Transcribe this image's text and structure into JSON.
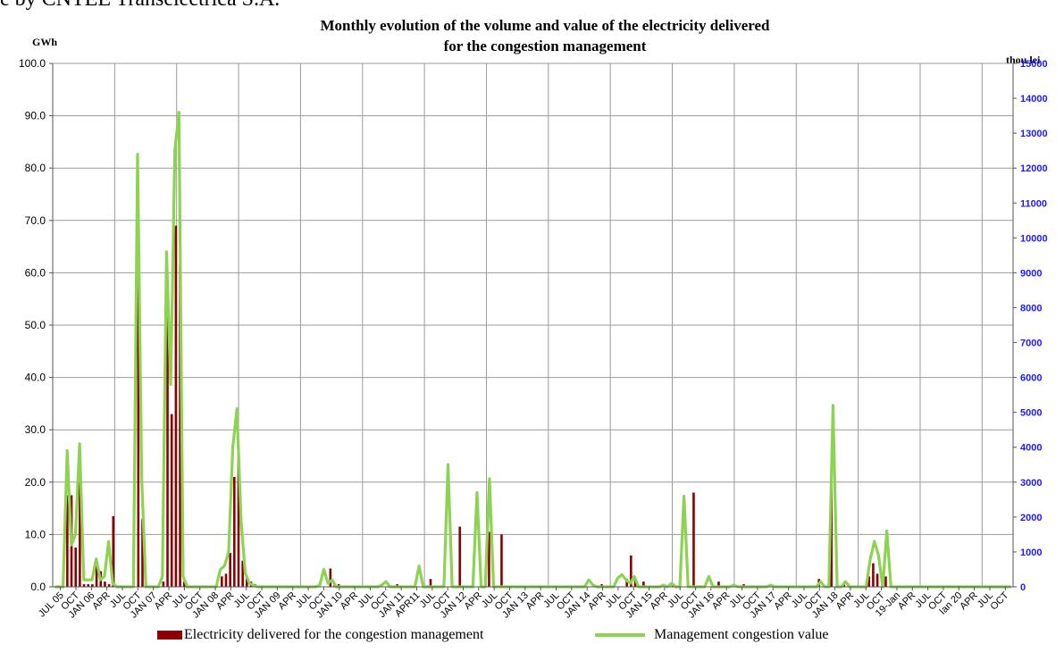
{
  "caption": "e by CNTEE Transelectrica S.A.",
  "chart_data": {
    "type": "bar",
    "title": "Monthly evolution of the volume and value of the electricity delivered",
    "subtitle": "for the congestion management",
    "ylabel_left": "GWh",
    "ylabel_right": "thou lei",
    "ylim_left": [
      0,
      100
    ],
    "ylim_right": [
      0,
      15000
    ],
    "yticks_left": [
      "0.0",
      "10.0",
      "20.0",
      "30.0",
      "40.0",
      "50.0",
      "60.0",
      "70.0",
      "80.0",
      "90.0",
      "100.0"
    ],
    "yticks_right": [
      "0",
      "1000",
      "2000",
      "3000",
      "4000",
      "5000",
      "6000",
      "7000",
      "8000",
      "9000",
      "10000",
      "11000",
      "12000",
      "13000",
      "14000",
      "15000"
    ],
    "x_labels": [
      "JUL 05",
      "OCT",
      "JAN 06",
      "APR",
      "JUL",
      "OCT",
      "JAN 07",
      "APR",
      "JUL",
      "OCT",
      "JAN 08",
      "APR",
      "JUL",
      "OCT",
      "JAN 09",
      "APR",
      "JUL",
      "OCT",
      "JAN 10",
      "APR",
      "JUL",
      "OCT",
      "JAN 11",
      "APR11",
      "JUL",
      "OCT",
      "JAN 12",
      "APR",
      "JUL",
      "OCT",
      "JAN 13",
      "APR",
      "JUL",
      "OCT",
      "JAN 14",
      "APR",
      "JUL",
      "OCT",
      "JAN 15",
      "APR",
      "JUL",
      "OCT",
      "JAN 16",
      "APR",
      "JUL",
      "OCT",
      "JAN 17",
      "APR",
      "JUL",
      "OCT",
      "JAN 18",
      "APR",
      "JUL",
      "OCT",
      "19-Jan",
      "APR",
      "JUL",
      "OCT",
      "Ian 20",
      "APR",
      "JUL",
      "OCT"
    ],
    "grid": true,
    "legend_position": "bottom",
    "series": [
      {
        "name": "Electricity delivered for the congestion management",
        "type": "bar",
        "axis": "left",
        "color": "#8b0000",
        "values": [
          0,
          0,
          0,
          17.5,
          17.5,
          7.5,
          20,
          0.5,
          0.5,
          0.5,
          5,
          3,
          1,
          0.5,
          13.5,
          0,
          0,
          0,
          0,
          0,
          59,
          13,
          0,
          0,
          0,
          0,
          1,
          52,
          33,
          69,
          61.5,
          1,
          0,
          0,
          0,
          0,
          0,
          0,
          0,
          0,
          2,
          2.5,
          6.5,
          21,
          27,
          5,
          2,
          1,
          0.5,
          0,
          0,
          0,
          0,
          0,
          0,
          0,
          0,
          0,
          0,
          0,
          0,
          0,
          0,
          0,
          0,
          0,
          3.5,
          0.5,
          0.5,
          0,
          0,
          0,
          0,
          0,
          0,
          0,
          0,
          0,
          0,
          0,
          0,
          0,
          0.5,
          0,
          0,
          0,
          0,
          0,
          0,
          0,
          1.5,
          0,
          0,
          0,
          0,
          0,
          0,
          11.5,
          0,
          0,
          0,
          0,
          0,
          0,
          10.5,
          0,
          0,
          10,
          0,
          0,
          0,
          0,
          0,
          0,
          0,
          0,
          0,
          0,
          0,
          0,
          0,
          0,
          0,
          0,
          0,
          0,
          0,
          0,
          0,
          0,
          0,
          0.5,
          0,
          0,
          0,
          0,
          0,
          1.5,
          6,
          1.5,
          0,
          1,
          0,
          0,
          0,
          0,
          0,
          0,
          0.5,
          0,
          0,
          0,
          0,
          18,
          0,
          0,
          0,
          0,
          0,
          1,
          0,
          0,
          0,
          0,
          0,
          0.5,
          0,
          0,
          0,
          0,
          0,
          0,
          0,
          0,
          0,
          0,
          0,
          0,
          0,
          0,
          0,
          0,
          0,
          1.5,
          0,
          0,
          20,
          0,
          0,
          0.5,
          0,
          0,
          0,
          0,
          0,
          2,
          4.5,
          2.5,
          0,
          2,
          0,
          0,
          0,
          0,
          0,
          0,
          0,
          0,
          0,
          0,
          0,
          0,
          0,
          0,
          0,
          0,
          0,
          0,
          0,
          0,
          0,
          0,
          0,
          0,
          0,
          0,
          0,
          0,
          0,
          0
        ]
      },
      {
        "name": "Management congestion value",
        "type": "line",
        "axis": "right",
        "color": "#8cd352",
        "values": [
          0,
          0,
          0,
          3900,
          1200,
          1500,
          4100,
          200,
          200,
          200,
          800,
          200,
          300,
          1300,
          100,
          0,
          0,
          0,
          0,
          0,
          12400,
          3100,
          0,
          0,
          0,
          0,
          300,
          9600,
          5800,
          12500,
          13600,
          300,
          0,
          0,
          0,
          0,
          0,
          0,
          0,
          0,
          500,
          600,
          1000,
          4000,
          5100,
          1900,
          400,
          100,
          50,
          0,
          0,
          0,
          0,
          0,
          0,
          0,
          0,
          0,
          0,
          0,
          0,
          0,
          0,
          0,
          50,
          500,
          100,
          200,
          0,
          0,
          0,
          0,
          0,
          0,
          0,
          0,
          0,
          0,
          0,
          50,
          150,
          0,
          0,
          0,
          0,
          0,
          0,
          0,
          600,
          0,
          0,
          0,
          0,
          0,
          0,
          3500,
          0,
          0,
          0,
          0,
          0,
          0,
          2700,
          0,
          0,
          3100,
          0,
          0,
          0,
          0,
          0,
          0,
          0,
          0,
          0,
          0,
          0,
          0,
          0,
          0,
          0,
          0,
          0,
          0,
          0,
          0,
          0,
          0,
          0,
          200,
          50,
          0,
          0,
          0,
          0,
          0,
          250,
          350,
          200,
          100,
          300,
          0,
          0,
          0,
          0,
          0,
          0,
          50,
          0,
          100,
          0,
          0,
          2600,
          0,
          0,
          0,
          0,
          0,
          300,
          0,
          0,
          0,
          0,
          0,
          50,
          0,
          0,
          0,
          0,
          0,
          0,
          0,
          0,
          50,
          0,
          0,
          0,
          0,
          0,
          0,
          0,
          0,
          0,
          0,
          0,
          150,
          0,
          0,
          5200,
          0,
          0,
          150,
          0,
          0,
          0,
          0,
          0,
          800,
          1300,
          900,
          0,
          1600,
          0,
          0,
          0,
          0,
          0,
          0,
          0,
          0,
          0,
          0,
          0,
          0,
          0,
          0,
          0,
          0,
          0,
          0,
          0,
          0,
          0,
          0,
          0,
          0,
          0,
          0,
          0,
          0,
          0,
          0
        ]
      }
    ]
  }
}
